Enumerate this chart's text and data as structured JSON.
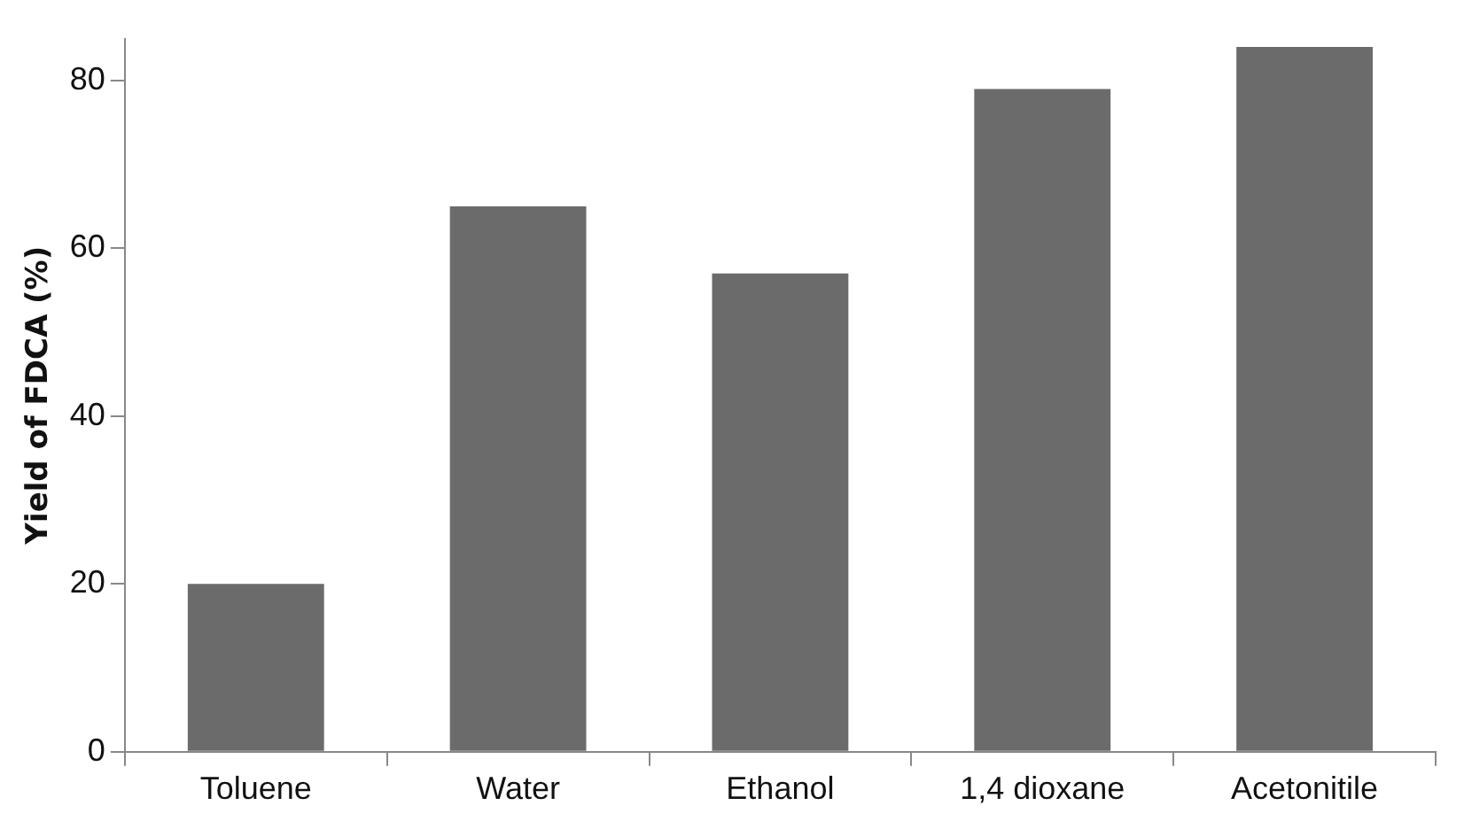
{
  "chart_data": {
    "type": "bar",
    "ylabel": "Yield of FDCA (%)",
    "categories": [
      "Toluene",
      "Water",
      "Ethanol",
      "1,4 dioxane",
      "Acetonitile"
    ],
    "values": [
      20,
      65,
      57,
      79,
      84
    ],
    "color": "#6b6b6b",
    "ylim": [
      0,
      85
    ],
    "yticks": [
      0,
      20,
      40,
      60,
      80
    ],
    "grid": false,
    "legend": false
  }
}
